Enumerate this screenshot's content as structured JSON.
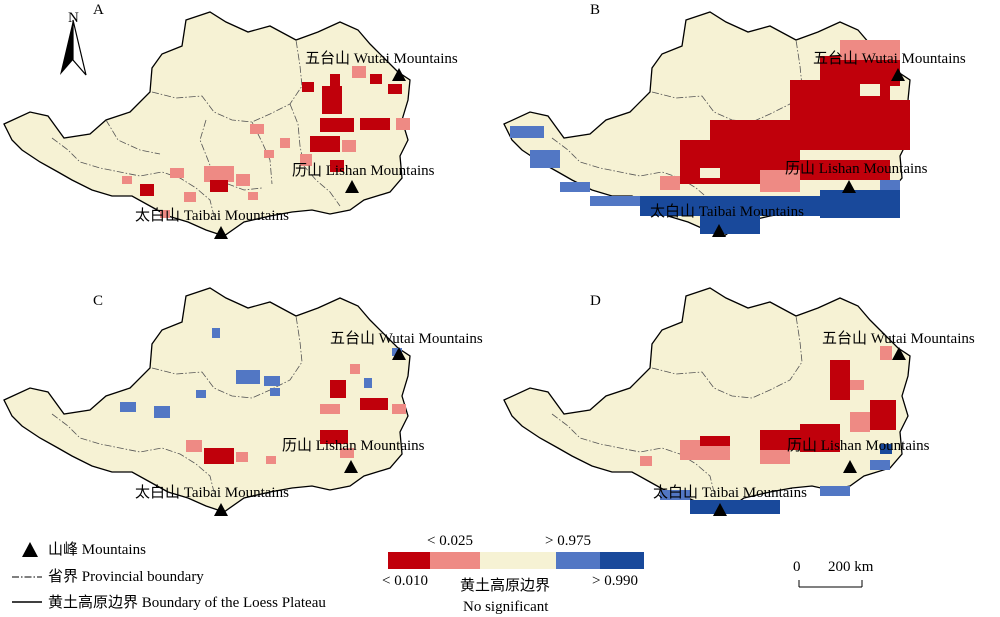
{
  "north_label": "N",
  "panels": [
    {
      "id": "A",
      "letter": "A"
    },
    {
      "id": "B",
      "letter": "B"
    },
    {
      "id": "C",
      "letter": "C"
    },
    {
      "id": "D",
      "letter": "D"
    }
  ],
  "mountain_labels": {
    "wutai": "五台山 Wutai Mountains",
    "lishan": "历山 Lishan Mountains",
    "taibai": "太白山 Taibai Mountains"
  },
  "legend": {
    "mountains": "山峰 Mountains",
    "provincial_boundary": "省界 Provincial boundary",
    "plateau_boundary": "黄土高原边界 Boundary of the Loess Plateau"
  },
  "colorbar": {
    "label_lt_0025": "< 0.025",
    "label_gt_0975": "> 0.975",
    "label_lt_0010": "< 0.010",
    "label_gt_0990": "> 0.990",
    "center_cn": "黄土高原边界",
    "center_en": "No significant",
    "classes": [
      {
        "name": "< 0.010",
        "color": "#c0000b"
      },
      {
        "name": "< 0.025",
        "color": "#ee8a84"
      },
      {
        "name": "No significant",
        "color": "#f6f2d4"
      },
      {
        "name": "> 0.975",
        "color": "#5277c4"
      },
      {
        "name": "> 0.990",
        "color": "#19499b"
      }
    ]
  },
  "scale_bar": {
    "zero": "0",
    "distance": "200 km"
  },
  "colors": {
    "plateau_fill": "#f6f2d4",
    "sig_001": "#c0000b",
    "sig_0025": "#ee8a84",
    "sig_0975": "#5277c4",
    "sig_099": "#19499b"
  }
}
